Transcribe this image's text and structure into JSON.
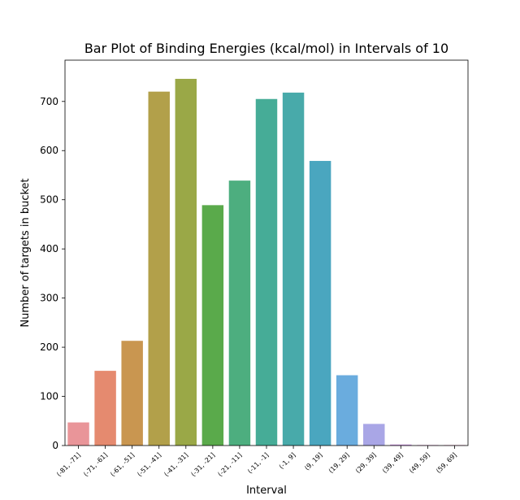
{
  "chart_data": {
    "type": "bar",
    "title": "Bar Plot of Binding Energies (kcal/mol) in Intervals of 10",
    "xlabel": "Interval",
    "ylabel": "Number of targets in bucket",
    "categories": [
      "(-81, -71]",
      "(-71, -61]",
      "(-61, -51]",
      "(-51, -41]",
      "(-41, -31]",
      "(-31, -21]",
      "(-21, -11]",
      "(-11, -1]",
      "(-1, 9]",
      "(9, 19]",
      "(19, 29]",
      "(29, 39]",
      "(39, 49]",
      "(49, 59]",
      "(59, 69]"
    ],
    "values": [
      47,
      152,
      213,
      720,
      746,
      489,
      539,
      705,
      718,
      579,
      143,
      44,
      2,
      1,
      1
    ],
    "ylim": [
      0,
      784
    ],
    "yticks": [
      0,
      100,
      200,
      300,
      400,
      500,
      600,
      700
    ],
    "grid": false,
    "legend": "none",
    "colors": [
      "#e99599",
      "#e58a6f",
      "#c99650",
      "#b2a04a",
      "#9aa847",
      "#5aaa4b",
      "#4dae7f",
      "#46ac97",
      "#48aaaa",
      "#4aa6bf",
      "#6aacde",
      "#a9a6e6",
      "#c98ee0",
      "#e386d5",
      "#e98fc0"
    ]
  }
}
